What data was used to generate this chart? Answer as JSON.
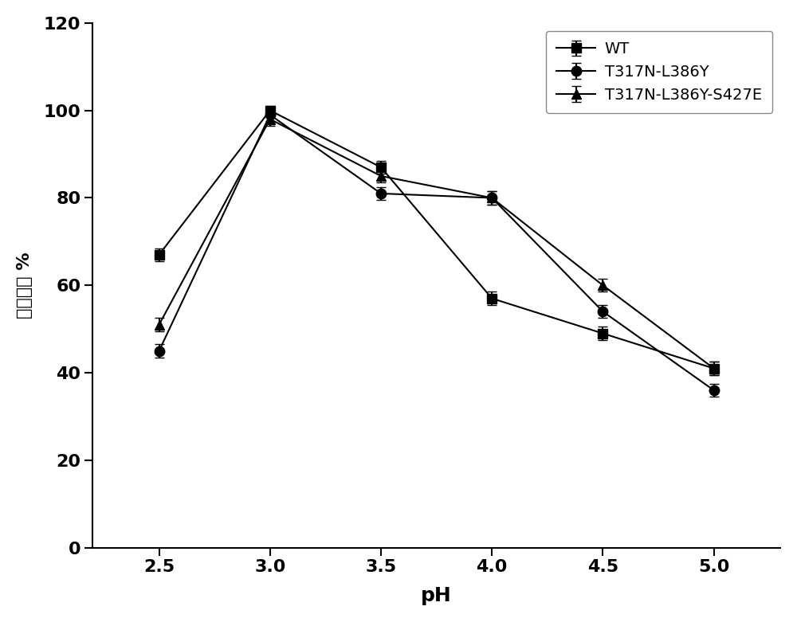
{
  "pH": [
    2.5,
    3.0,
    3.5,
    4.0,
    4.5,
    5.0
  ],
  "WT": [
    67,
    100,
    87,
    57,
    49,
    41
  ],
  "WT_err": [
    1.5,
    1.0,
    1.5,
    1.5,
    1.5,
    1.5
  ],
  "T317N_L386Y": [
    45,
    99,
    81,
    80,
    54,
    36
  ],
  "T317N_L386Y_err": [
    1.5,
    1.5,
    1.5,
    1.5,
    1.5,
    1.5
  ],
  "T317N_L386Y_S427E": [
    51,
    98,
    85,
    80,
    60,
    41
  ],
  "T317N_L386Y_S427E_err": [
    1.5,
    1.5,
    1.5,
    1.5,
    1.5,
    1.5
  ],
  "xlabel": "pH",
  "ylabel": "相对酶活 %",
  "xlim": [
    2.2,
    5.3
  ],
  "ylim": [
    0,
    120
  ],
  "yticks": [
    0,
    20,
    40,
    60,
    80,
    100,
    120
  ],
  "xticks": [
    2.5,
    3.0,
    3.5,
    4.0,
    4.5,
    5.0
  ],
  "xtick_labels": [
    "2.5",
    "3.0",
    "3.5",
    "4.0",
    "4.5",
    "5.0"
  ],
  "ytick_labels": [
    "0",
    "20",
    "40",
    "60",
    "80",
    "100",
    "120"
  ],
  "legend_labels": [
    "WT",
    "T317N-L386Y",
    "T317N-L386Y-S427E"
  ],
  "line_color": "#000000",
  "marker_color": "#000000",
  "background_color": "#ffffff",
  "xlabel_fontsize": 18,
  "ylabel_fontsize": 16,
  "tick_fontsize": 16,
  "legend_fontsize": 14,
  "linewidth": 1.5,
  "markersize": 9,
  "capsize": 4,
  "elinewidth": 1.5
}
